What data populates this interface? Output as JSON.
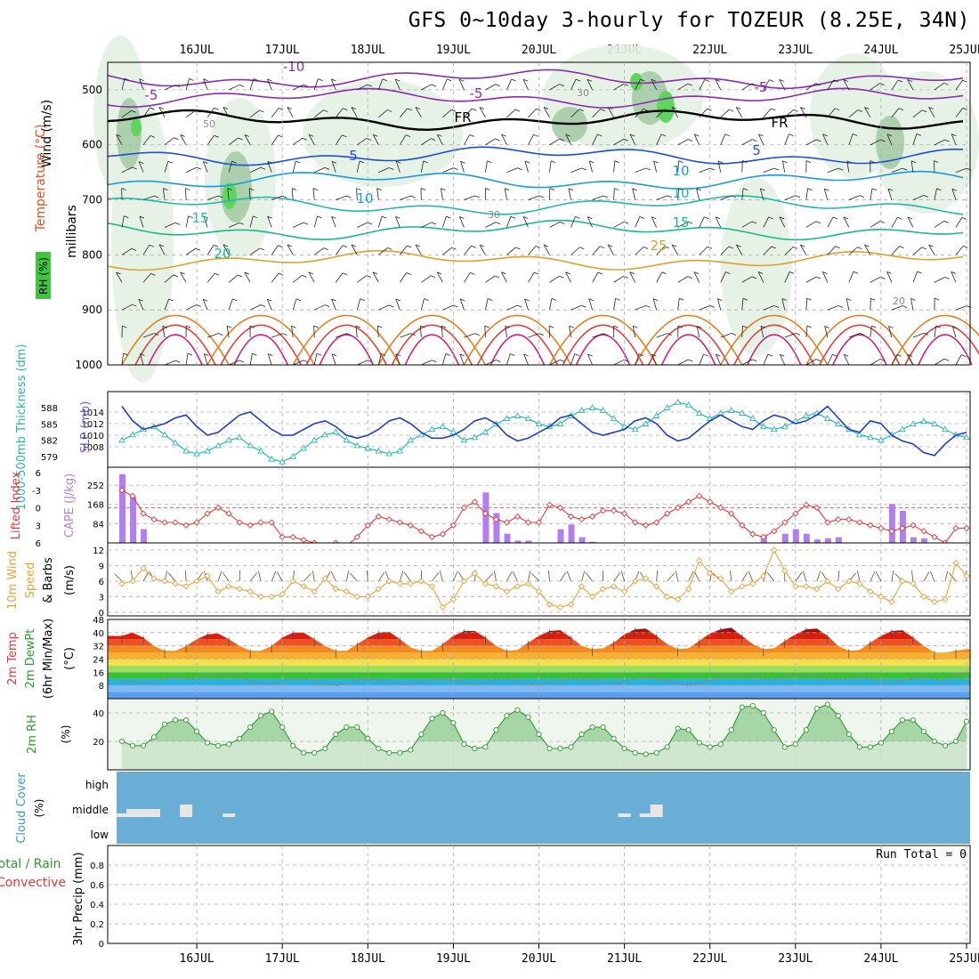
{
  "title": "GFS 0~10day 3-hourly for TOZEUR (8.25E, 34N)",
  "dates": [
    "16JUL",
    "17JUL",
    "18JUL",
    "19JUL",
    "20JUL",
    "21JUL",
    "22JUL",
    "23JUL",
    "24JUL",
    "25JUL"
  ],
  "colors": {
    "slp": "#1f3fbf",
    "thickness": "#2ab5b5",
    "lifted": "#e03a3a",
    "cape": "#b37ef0",
    "wind": "#e8a23a",
    "barb": "#6b4a2a",
    "rh": "#2d9a2d",
    "rh_fill": "#8ec98e",
    "cloud": "#6aaed6",
    "cloud_gap": "#e6e6e6"
  },
  "panels": {
    "upper": {
      "ylabel_wind": "Wind (m/s)",
      "ylabel_temp": "Temperature (°C)",
      "ylabel_rh": "RH (%)",
      "ylabel_p": "millibars",
      "yticks": [
        "500",
        "600",
        "700",
        "800",
        "900",
        "1000"
      ],
      "iso_labels": [
        "-10",
        "-5",
        "FR",
        "5",
        "10",
        "15",
        "20",
        "25",
        "10",
        "-5",
        "-5",
        "FR",
        "5",
        "10",
        "15",
        "20",
        "30",
        "50",
        "30"
      ]
    },
    "slp": {
      "ylabel_thk": "1000-500mb Thickness (dm)",
      "ylabel_slp": "SLP (mb)",
      "thk_ticks": [
        "588",
        "585",
        "582",
        "579"
      ],
      "slp_ticks": [
        "1014",
        "1012",
        "1010",
        "1008"
      ]
    },
    "cape": {
      "ylabel_li": "Lifted Index",
      "ylabel_cape": "CAPE (J/kg)",
      "li_ticks": [
        "6",
        "-3",
        "0",
        "3",
        "6"
      ],
      "cape_ticks": [
        "252",
        "168",
        "84"
      ]
    },
    "wind": {
      "ylabel": "10m Wind Speed & Barbs (m/s)",
      "ylabel_a": "10m Wind",
      "ylabel_b": "Speed",
      "ylabel_c": "& Barbs",
      "ylabel_d": "(m/s)",
      "yticks": [
        "12",
        "9",
        "6",
        "3",
        "0"
      ]
    },
    "temp": {
      "ylabel_a": "2m Temp",
      "ylabel_b": "2m DewPt",
      "ylabel_c": "(6hr Min/Max)",
      "ylabel_d": "(°C)",
      "yticks": [
        "48",
        "40",
        "32",
        "24",
        "16",
        "8"
      ]
    },
    "rh": {
      "ylabel": "2m RH",
      "unit": "(%)",
      "yticks": [
        "40",
        "20"
      ]
    },
    "cloud": {
      "ylabel": "Cloud Cover",
      "unit": "(%)",
      "levels": [
        "high",
        "middle",
        "low"
      ]
    },
    "precip": {
      "ylabel_a": "Total / Rain",
      "ylabel_b": "Convective",
      "ylabel_c": "3hr Precip (mm)",
      "yticks": [
        "0.8",
        "0.6",
        "0.4",
        "0.2",
        "0"
      ],
      "run_total": "Run Total = 0"
    }
  },
  "chart_data": [
    {
      "type": "line",
      "name": "SLP",
      "ylabel": "SLP (mb)",
      "ylim": [
        1006,
        1016
      ],
      "x_hours": [
        0,
        3,
        6,
        9,
        12,
        15,
        18,
        21,
        24,
        27,
        30,
        33,
        36,
        39,
        42,
        45,
        48,
        51,
        54,
        57,
        60,
        63,
        66,
        69,
        72,
        75,
        78,
        81,
        84,
        87,
        90,
        93,
        96,
        99,
        102,
        105,
        108,
        111,
        114,
        117,
        120,
        123,
        126,
        129,
        132,
        135,
        138,
        141,
        144,
        147,
        150,
        153,
        156,
        159,
        162,
        165,
        168,
        171,
        174,
        177,
        180,
        183,
        186,
        189,
        192,
        195,
        198,
        201,
        204,
        207,
        210,
        213,
        216,
        219,
        222,
        225,
        228,
        231,
        234,
        237
      ],
      "values": [
        1015,
        1012.5,
        1011,
        1011.5,
        1012,
        1013,
        1013.5,
        1011.5,
        1010,
        1010.5,
        1012,
        1013.5,
        1014,
        1012.5,
        1011,
        1010,
        1010,
        1011,
        1012,
        1012.5,
        1011.5,
        1010,
        1009.5,
        1010,
        1011,
        1012.5,
        1013,
        1012,
        1010.5,
        1009.5,
        1009.5,
        1010,
        1011,
        1012.5,
        1013,
        1012,
        1010,
        1009,
        1009.5,
        1010.5,
        1011.5,
        1013,
        1013.5,
        1012,
        1010.5,
        1010,
        1010.5,
        1011,
        1012.5,
        1013,
        1012,
        1010,
        1009,
        1009.5,
        1011,
        1012.5,
        1013.5,
        1012.5,
        1011.5,
        1011,
        1012.5,
        1013.5,
        1013,
        1012,
        1012.5,
        1013.5,
        1015,
        1013,
        1011,
        1010.5,
        1012.5,
        1012,
        1010,
        1009,
        1008.5,
        1007,
        1006.5,
        1008.5,
        1010,
        1010.5
      ]
    },
    {
      "type": "line",
      "name": "Thickness",
      "ylabel": "1000-500mb Thickness (dm)",
      "ylim": [
        578,
        590
      ],
      "x_hours": [
        0,
        3,
        6,
        9,
        12,
        15,
        18,
        21,
        24,
        27,
        30,
        33,
        36,
        39,
        42,
        45,
        48,
        51,
        54,
        57,
        60,
        63,
        66,
        69,
        72,
        75,
        78,
        81,
        84,
        87,
        90,
        93,
        96,
        99,
        102,
        105,
        108,
        111,
        114,
        117,
        120,
        123,
        126,
        129,
        132,
        135,
        138,
        141,
        144,
        147,
        150,
        153,
        156,
        159,
        162,
        165,
        168,
        171,
        174,
        177,
        180,
        183,
        186,
        189,
        192,
        195,
        198,
        201,
        204,
        207,
        210,
        213,
        216,
        219,
        222,
        225,
        228,
        231,
        234,
        237
      ],
      "values": [
        582,
        583,
        584,
        584.5,
        583,
        581.5,
        580,
        579.5,
        580,
        581,
        582,
        582.5,
        581,
        580,
        578.5,
        578,
        579,
        580.5,
        582,
        583,
        583.5,
        582,
        581,
        580.5,
        580,
        579.5,
        580,
        582,
        583,
        584,
        584.5,
        583.5,
        582,
        582.5,
        583.5,
        585,
        586,
        586.5,
        586,
        585,
        584.5,
        585,
        586.5,
        587.5,
        588,
        587.5,
        586,
        584.5,
        584,
        585,
        586.5,
        588,
        589,
        588.5,
        587,
        586,
        587,
        587.5,
        587,
        586,
        584.5,
        584,
        584.5,
        585.5,
        586.5,
        587,
        586,
        585,
        584,
        583,
        582.5,
        582,
        583,
        584,
        585,
        585.5,
        585,
        584,
        583,
        582.5
      ]
    },
    {
      "type": "line",
      "name": "Lifted Index",
      "ylabel": "Lifted Index",
      "ylim": [
        6,
        -6
      ],
      "x_hours": [
        0,
        3,
        6,
        9,
        12,
        15,
        18,
        21,
        24,
        27,
        30,
        33,
        36,
        39,
        42,
        45,
        48,
        51,
        54,
        57,
        60,
        63,
        66,
        69,
        72,
        75,
        78,
        81,
        84,
        87,
        90,
        93,
        96,
        99,
        102,
        105,
        108,
        111,
        114,
        117,
        120,
        123,
        126,
        129,
        132,
        135,
        138,
        141,
        144,
        147,
        150,
        153,
        156,
        159,
        162,
        165,
        168,
        171,
        174,
        177,
        180,
        183,
        186,
        189,
        192,
        195,
        198,
        201,
        204,
        207,
        210,
        213,
        216,
        219,
        222,
        225,
        228,
        231,
        234,
        237
      ],
      "values": [
        -3,
        -2,
        1,
        2,
        2.5,
        2.5,
        3,
        2.5,
        1,
        0,
        1,
        2.5,
        3,
        2.5,
        2.5,
        5,
        5,
        5.5,
        6,
        6.5,
        6,
        6.5,
        5,
        3,
        1.5,
        2,
        2.5,
        3,
        4,
        5,
        4.5,
        3,
        0,
        -1,
        1,
        2,
        2.5,
        1.5,
        2.5,
        2.5,
        -0.5,
        0,
        1.5,
        2,
        1.5,
        0.5,
        0.5,
        1,
        2.5,
        3,
        2.5,
        1,
        0,
        -1,
        -2,
        -1,
        0,
        1,
        3,
        4.5,
        5,
        4,
        2.5,
        1,
        -0.5,
        0,
        2.5,
        2,
        2,
        2.5,
        3,
        3.5,
        4,
        3.5,
        3,
        4,
        5,
        6,
        3.5,
        3.5
      ]
    },
    {
      "type": "bar",
      "name": "CAPE",
      "ylabel": "CAPE (J/kg)",
      "ylim": [
        0,
        330
      ],
      "x_hours": [
        0,
        3,
        6,
        102,
        105,
        108,
        111,
        114,
        123,
        126,
        129,
        132,
        180,
        186,
        189,
        192,
        195,
        198,
        201,
        216,
        219,
        222,
        225
      ],
      "values": [
        300,
        200,
        60,
        220,
        130,
        40,
        10,
        10,
        60,
        80,
        25,
        5,
        30,
        40,
        60,
        40,
        15,
        20,
        25,
        170,
        140,
        25,
        20
      ]
    },
    {
      "type": "line",
      "name": "10m Wind Speed",
      "ylabel": "(m/s)",
      "ylim": [
        0,
        12
      ],
      "x_hours": [
        0,
        3,
        6,
        9,
        12,
        15,
        18,
        21,
        24,
        27,
        30,
        33,
        36,
        39,
        42,
        45,
        48,
        51,
        54,
        57,
        60,
        63,
        66,
        69,
        72,
        75,
        78,
        81,
        84,
        87,
        90,
        93,
        96,
        99,
        102,
        105,
        108,
        111,
        114,
        117,
        120,
        123,
        126,
        129,
        132,
        135,
        138,
        141,
        144,
        147,
        150,
        153,
        156,
        159,
        162,
        165,
        168,
        171,
        174,
        177,
        180,
        183,
        186,
        189,
        192,
        195,
        198,
        201,
        204,
        207,
        210,
        213,
        216,
        219,
        222,
        225,
        228,
        231,
        234,
        237
      ],
      "values": [
        5.5,
        6,
        8.5,
        6.5,
        6,
        5.5,
        5,
        6,
        7,
        4,
        5,
        4.5,
        4,
        3,
        3,
        3.5,
        6,
        5,
        4,
        6.5,
        4.5,
        4,
        3,
        3,
        4.5,
        6,
        5.5,
        5.5,
        6,
        5,
        1,
        2.5,
        6,
        7.5,
        5.5,
        5,
        4,
        5,
        5.5,
        4,
        1.5,
        1,
        1.5,
        5,
        3,
        4.5,
        5,
        4,
        6,
        6.5,
        5,
        3,
        2.5,
        4.5,
        10,
        7.5,
        6.5,
        4,
        5,
        5.5,
        7,
        12,
        8,
        5,
        5,
        4.5,
        6,
        4.5,
        6,
        5.5,
        4,
        3,
        2,
        6,
        5.5,
        3,
        2,
        2.5,
        9.5,
        7
      ]
    },
    {
      "type": "area",
      "name": "2m Temp",
      "ylabel": "(°C)",
      "ylim": [
        0,
        48
      ],
      "x_hours": [
        0,
        3,
        6,
        9,
        12,
        15,
        18,
        21,
        24,
        27,
        30,
        33,
        36,
        39,
        42,
        45,
        48,
        51,
        54,
        57,
        60,
        63,
        66,
        69,
        72,
        75,
        78,
        81,
        84,
        87,
        90,
        93,
        96,
        99,
        102,
        105,
        108,
        111,
        114,
        117,
        120,
        123,
        126,
        129,
        132,
        135,
        138,
        141,
        144,
        147,
        150,
        153,
        156,
        159,
        162,
        165,
        168,
        171,
        174,
        177,
        180,
        183,
        186,
        189,
        192,
        195,
        198,
        201,
        204,
        207,
        210,
        213,
        216,
        219,
        222,
        225,
        228,
        231,
        234,
        237
      ],
      "values": [
        38,
        40,
        37,
        32,
        29,
        29,
        32,
        36,
        39,
        39.5,
        36,
        32,
        29,
        29,
        32,
        37,
        40,
        40,
        36,
        32,
        29,
        29,
        33,
        37,
        40,
        40.5,
        36,
        31,
        29,
        29,
        33,
        38,
        41,
        41,
        37,
        32,
        29,
        29.5,
        34,
        38,
        41,
        41.5,
        37,
        32,
        30,
        30.5,
        34,
        39,
        42,
        42.5,
        38,
        33,
        30,
        30.5,
        35,
        39.5,
        42,
        43,
        38,
        33,
        30,
        30.5,
        35,
        39,
        42,
        42.5,
        38,
        32,
        29,
        29.5,
        34,
        38,
        41,
        41.5,
        37,
        32,
        28,
        28,
        29,
        30
      ]
    },
    {
      "type": "line",
      "name": "2m DewPt",
      "ylabel": "(°C)",
      "ylim": [
        0,
        48
      ],
      "x_hours": [
        0,
        3,
        6,
        9,
        12,
        15,
        18,
        21,
        24,
        27,
        30,
        33,
        36,
        39,
        42,
        45,
        48,
        51,
        54,
        57,
        60,
        63,
        66,
        69,
        72,
        75,
        78,
        81,
        84,
        87,
        90,
        93,
        96,
        99,
        102,
        105,
        108,
        111,
        114,
        117,
        120,
        123,
        126,
        129,
        132,
        135,
        138,
        141,
        144,
        147,
        150,
        153,
        156,
        159,
        162,
        165,
        168,
        171,
        174,
        177,
        180,
        183,
        186,
        189,
        192,
        195,
        198,
        201,
        204,
        207,
        210,
        213,
        216,
        219,
        222,
        225,
        228,
        231,
        234,
        237
      ],
      "values": [
        11,
        10,
        9,
        10,
        12,
        13,
        12,
        12,
        13,
        14,
        15,
        13,
        11,
        9,
        9,
        10,
        12,
        12,
        11,
        9,
        8,
        9,
        11,
        12,
        11,
        10,
        9,
        9,
        10,
        11,
        12,
        11,
        10,
        9,
        10,
        12,
        12,
        11,
        9,
        8,
        10,
        11,
        12,
        12,
        11,
        10,
        9,
        10,
        12,
        13,
        12,
        11,
        9,
        8,
        9,
        11,
        13,
        14,
        14,
        13,
        12,
        12,
        13,
        14,
        14,
        13,
        12,
        12,
        12,
        13,
        12,
        11,
        10,
        11,
        12,
        13,
        12,
        11,
        14,
        16
      ]
    },
    {
      "type": "area",
      "name": "2m RH",
      "ylabel": "(%)",
      "ylim": [
        0,
        50
      ],
      "x_hours": [
        0,
        3,
        6,
        9,
        12,
        15,
        18,
        21,
        24,
        27,
        30,
        33,
        36,
        39,
        42,
        45,
        48,
        51,
        54,
        57,
        60,
        63,
        66,
        69,
        72,
        75,
        78,
        81,
        84,
        87,
        90,
        93,
        96,
        99,
        102,
        105,
        108,
        111,
        114,
        117,
        120,
        123,
        126,
        129,
        132,
        135,
        138,
        141,
        144,
        147,
        150,
        153,
        156,
        159,
        162,
        165,
        168,
        171,
        174,
        177,
        180,
        183,
        186,
        189,
        192,
        195,
        198,
        201,
        204,
        207,
        210,
        213,
        216,
        219,
        222,
        225,
        228,
        231,
        234,
        237
      ],
      "values": [
        20,
        17,
        17,
        23,
        32,
        35,
        35,
        27,
        19,
        17,
        18,
        22,
        30,
        38,
        41,
        30,
        17,
        12,
        12,
        15,
        25,
        30,
        30,
        22,
        15,
        12,
        12,
        14,
        25,
        36,
        40,
        33,
        18,
        15,
        16,
        28,
        38,
        42,
        37,
        25,
        15,
        15,
        16,
        25,
        30,
        30,
        22,
        15,
        12,
        11,
        12,
        16,
        29,
        28,
        19,
        16,
        18,
        28,
        44,
        45,
        40,
        28,
        16,
        18,
        28,
        43,
        46,
        38,
        25,
        16,
        16,
        19,
        27,
        35,
        35,
        27,
        20,
        17,
        20,
        34
      ]
    },
    {
      "type": "bar",
      "name": "Cloud Cover (gaps)",
      "ylabel": "Cloud Cover",
      "x_hours": [
        0,
        3,
        6,
        9,
        18,
        30,
        141,
        147,
        150
      ],
      "values": [
        1,
        1,
        1,
        1,
        1,
        1,
        1,
        1,
        1
      ]
    },
    {
      "type": "bar",
      "name": "3hr Precip",
      "ylabel": "3hr Precip (mm)",
      "ylim": [
        0,
        1
      ],
      "x_hours": [],
      "values": []
    }
  ]
}
